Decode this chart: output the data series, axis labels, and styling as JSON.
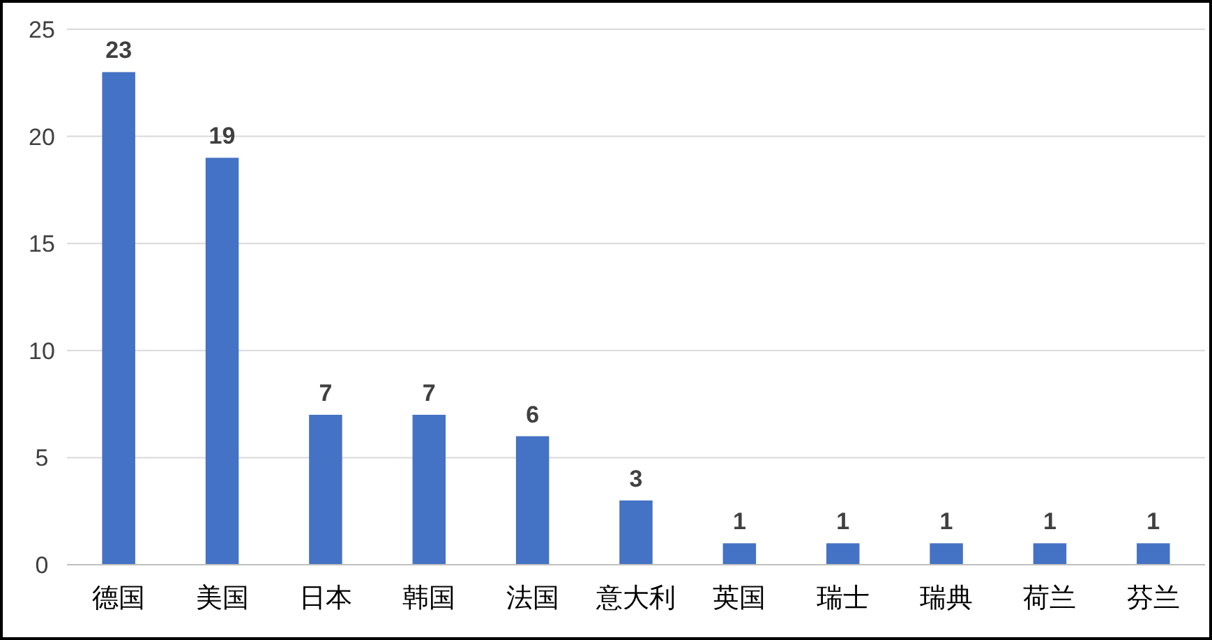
{
  "chart_data": {
    "type": "bar",
    "categories": [
      "德国",
      "美国",
      "日本",
      "韩国",
      "法国",
      "意大利",
      "英国",
      "瑞士",
      "瑞典",
      "荷兰",
      "芬兰"
    ],
    "values": [
      23,
      19,
      7,
      7,
      6,
      3,
      1,
      1,
      1,
      1,
      1
    ],
    "color": "#4472c4",
    "ylim": [
      0,
      25
    ],
    "yticks": [
      0,
      5,
      10,
      15,
      20,
      25
    ],
    "grid": "y",
    "data_labels": true
  }
}
